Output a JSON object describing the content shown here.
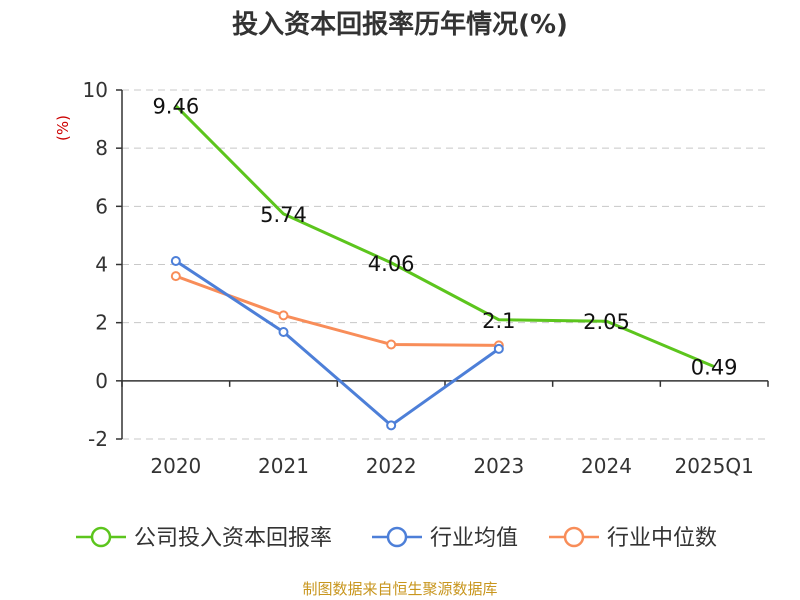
{
  "chart_data": {
    "type": "line",
    "title": "投入资本回报率历年情况(%)",
    "ylabel": "(%)",
    "xlabel": "",
    "categories": [
      "2020",
      "2021",
      "2022",
      "2023",
      "2024",
      "2025Q1"
    ],
    "ylim": [
      -2,
      10
    ],
    "yticks": [
      -2,
      0,
      2,
      4,
      6,
      8,
      10
    ],
    "grid": true,
    "legend_position": "bottom",
    "series": [
      {
        "name": "公司投入资本回报率",
        "color": "#5cc51d",
        "values": [
          9.46,
          5.74,
          4.06,
          2.1,
          2.05,
          0.49
        ],
        "labels": [
          "9.46",
          "5.74",
          "4.06",
          "2.1",
          "2.05",
          "0.49"
        ]
      },
      {
        "name": "行业均值",
        "color": "#4d7fd8",
        "values": [
          4.12,
          1.68,
          -1.53,
          1.1,
          null,
          null
        ]
      },
      {
        "name": "行业中位数",
        "color": "#f88d59",
        "values": [
          3.6,
          2.25,
          1.25,
          1.22,
          null,
          null
        ]
      }
    ]
  },
  "source": "制图数据来自恒生聚源数据库"
}
